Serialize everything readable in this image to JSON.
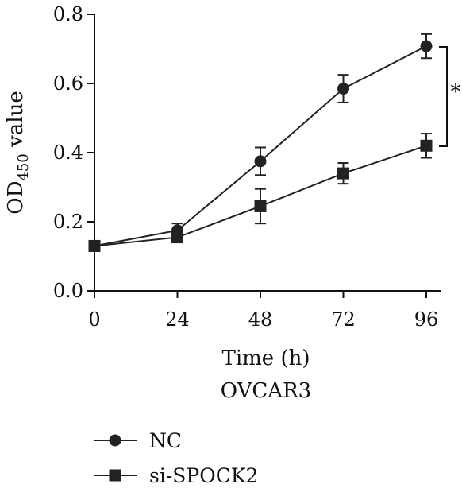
{
  "chart_data": {
    "type": "line",
    "x": [
      0,
      24,
      48,
      72,
      96
    ],
    "series": [
      {
        "name": "NC",
        "marker": "circle",
        "values": [
          0.13,
          0.175,
          0.375,
          0.585,
          0.708
        ],
        "errors": [
          0.01,
          0.02,
          0.04,
          0.04,
          0.035
        ]
      },
      {
        "name": "si-SPOCK2",
        "marker": "square",
        "values": [
          0.13,
          0.155,
          0.245,
          0.34,
          0.42
        ],
        "errors": [
          0.01,
          0.01,
          0.05,
          0.03,
          0.035
        ]
      }
    ],
    "xticks": [
      "0",
      "24",
      "48",
      "72",
      "96"
    ],
    "yticks": [
      "0.0",
      "0.2",
      "0.4",
      "0.6",
      "0.8"
    ],
    "xlim": [
      0,
      96
    ],
    "ylim": [
      0,
      0.8
    ],
    "xlabel": "Time (h)",
    "subtitle": "OVCAR3",
    "ylabel_main": "OD",
    "ylabel_sub": "450",
    "ylabel_rest": " value",
    "significance": "*",
    "legend_position": "bottom-left",
    "grid": false,
    "colors": {
      "line": "#222222",
      "marker": "#222222",
      "axis": "#111111"
    }
  }
}
